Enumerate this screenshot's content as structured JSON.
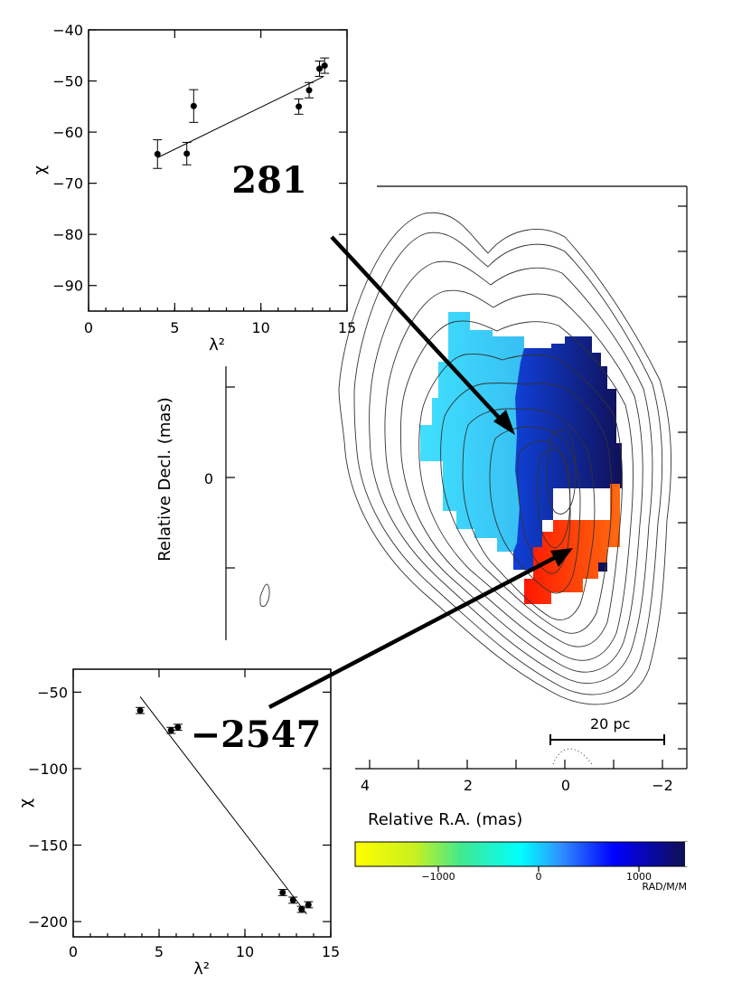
{
  "chart_data": [
    {
      "type": "scatter",
      "panel": "top-left inset",
      "xlabel": "λ²",
      "ylabel": "χ",
      "xlim": [
        0,
        15
      ],
      "ylim": [
        -95,
        -40
      ],
      "x_ticks": [
        0,
        5,
        10,
        15
      ],
      "y_ticks": [
        -40,
        -50,
        -60,
        -70,
        -80,
        -90
      ],
      "annotation": "281",
      "points": [
        {
          "x": 4.0,
          "y": -64.3,
          "err": 2.8
        },
        {
          "x": 5.7,
          "y": -64.2,
          "err": 2.2
        },
        {
          "x": 6.1,
          "y": -54.9,
          "err": 3.2
        },
        {
          "x": 12.2,
          "y": -55.0,
          "err": 1.5
        },
        {
          "x": 12.8,
          "y": -51.8,
          "err": 1.5
        },
        {
          "x": 13.4,
          "y": -47.6,
          "err": 1.5
        },
        {
          "x": 13.7,
          "y": -47.0,
          "err": 1.5
        }
      ],
      "fit_line": [
        [
          4.0,
          -65.0
        ],
        [
          13.6,
          -49.2
        ]
      ]
    },
    {
      "type": "scatter",
      "panel": "bottom-left inset",
      "xlabel": "λ²",
      "ylabel": "χ",
      "xlim": [
        0,
        15
      ],
      "ylim": [
        -210,
        -35
      ],
      "x_ticks": [
        0,
        5,
        10,
        15
      ],
      "y_ticks": [
        -50,
        -100,
        -150,
        -200
      ],
      "annotation": "−2547",
      "points": [
        {
          "x": 3.9,
          "y": -62,
          "err": 2
        },
        {
          "x": 5.7,
          "y": -75,
          "err": 2
        },
        {
          "x": 6.1,
          "y": -73,
          "err": 2
        },
        {
          "x": 12.2,
          "y": -181,
          "err": 2
        },
        {
          "x": 12.8,
          "y": -186,
          "err": 2
        },
        {
          "x": 13.3,
          "y": -192,
          "err": 2
        },
        {
          "x": 13.7,
          "y": -189,
          "err": 2
        }
      ],
      "fit_line": [
        [
          3.9,
          -53
        ],
        [
          13.6,
          -195
        ]
      ]
    },
    {
      "type": "heatmap",
      "panel": "main rotation-measure map with contours",
      "xlabel": "Relative R.A. (mas)",
      "ylabel": "Relative Decl. (mas)",
      "x_ticks": [
        "4",
        "2",
        "0",
        "−2"
      ],
      "y_ticks": [
        "0"
      ],
      "scale_bar": "20 pc",
      "colorbar": {
        "ticks": [
          "−1000",
          "0",
          "1000"
        ],
        "unit": "RAD/M/M",
        "colors": [
          "#ffff00",
          "#00ffff",
          "#0000ff",
          "#101050"
        ]
      },
      "regions": [
        {
          "name": "positive RM",
          "color": "#2828c8"
        },
        {
          "name": "near-zero RM",
          "color": "#40c0ff"
        },
        {
          "name": "negative RM",
          "color": "#ff4400"
        }
      ]
    }
  ]
}
